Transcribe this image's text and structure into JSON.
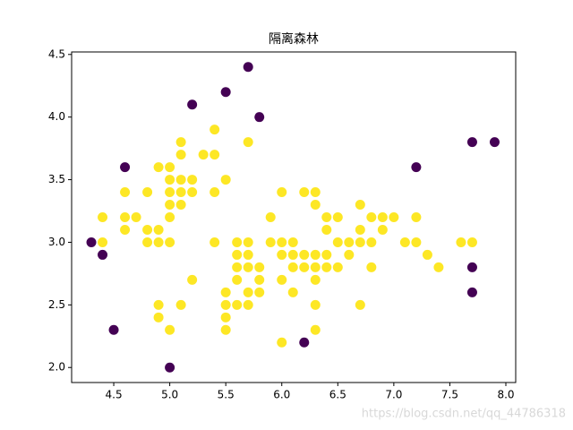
{
  "chart_data": {
    "type": "scatter",
    "title": "隔离森林",
    "xlim": [
      4.124,
      8.088
    ],
    "ylim": [
      1.88,
      4.52
    ],
    "xticks": [
      4.5,
      {
        "value": 5,
        "label": "5.0"
      },
      5.5,
      {
        "value": 6,
        "label": "6.0"
      },
      6.5,
      {
        "value": 7,
        "label": "7.0"
      },
      7.5,
      {
        "value": 8,
        "label": "8.0"
      }
    ],
    "yticks": [
      {
        "value": 2,
        "label": "2.0"
      },
      2.5,
      {
        "value": 3,
        "label": "3.0"
      },
      3.5,
      {
        "value": 4,
        "label": "4.0"
      },
      4.5
    ],
    "series": [
      {
        "color": "#fde725",
        "x": [
          4.4,
          4.4,
          4.6,
          4.6,
          4.6,
          4.7,
          4.8,
          4.8,
          4.8,
          4.9,
          4.9,
          4.9,
          4.9,
          4.9,
          5.0,
          5.0,
          5.0,
          5.0,
          5.0,
          5.0,
          5.0,
          5.1,
          5.1,
          5.1,
          5.1,
          5.1,
          5.1,
          5.2,
          5.2,
          5.2,
          5.3,
          5.4,
          5.4,
          5.4,
          5.4,
          5.5,
          5.5,
          5.5,
          5.5,
          5.5,
          5.6,
          5.6,
          5.6,
          5.6,
          5.6,
          5.7,
          5.7,
          5.7,
          5.7,
          5.7,
          5.7,
          5.8,
          5.8,
          5.8,
          5.9,
          5.9,
          6.0,
          6.0,
          6.0,
          6.0,
          6.0,
          6.1,
          6.1,
          6.1,
          6.1,
          6.2,
          6.2,
          6.2,
          6.3,
          6.3,
          6.3,
          6.3,
          6.3,
          6.3,
          6.3,
          6.4,
          6.4,
          6.4,
          6.4,
          6.5,
          6.5,
          6.5,
          6.6,
          6.6,
          6.7,
          6.7,
          6.7,
          6.7,
          6.8,
          6.8,
          6.8,
          6.9,
          6.9,
          7.0,
          7.1,
          7.2,
          7.2,
          7.3,
          7.4,
          7.6,
          7.7
        ],
        "values": [
          3.2,
          3.0,
          3.4,
          3.2,
          3.1,
          3.2,
          3.4,
          3.1,
          3.0,
          3.6,
          3.1,
          3.0,
          2.5,
          2.4,
          3.6,
          3.5,
          3.4,
          3.3,
          3.2,
          3.0,
          2.3,
          3.8,
          3.7,
          3.5,
          3.4,
          3.3,
          2.5,
          3.5,
          3.4,
          2.7,
          3.7,
          3.9,
          3.7,
          3.4,
          3.0,
          3.5,
          2.6,
          2.5,
          2.4,
          2.3,
          3.0,
          2.9,
          2.8,
          2.7,
          2.5,
          3.8,
          3.0,
          2.9,
          2.8,
          2.6,
          2.5,
          2.8,
          2.7,
          2.6,
          3.2,
          3.0,
          3.4,
          3.0,
          2.9,
          2.7,
          2.2,
          3.0,
          2.9,
          2.8,
          2.6,
          3.4,
          2.9,
          2.8,
          3.4,
          3.3,
          2.9,
          2.8,
          2.7,
          2.5,
          2.3,
          3.2,
          3.1,
          2.9,
          2.8,
          3.2,
          3.0,
          2.8,
          3.0,
          2.9,
          3.3,
          3.1,
          3.0,
          2.5,
          3.2,
          3.0,
          2.8,
          3.2,
          3.1,
          3.2,
          3.0,
          3.2,
          3.0,
          2.9,
          2.8,
          3.0,
          3.0
        ]
      },
      {
        "color": "#440154",
        "x": [
          4.3,
          4.4,
          4.5,
          4.6,
          5.0,
          5.2,
          5.5,
          5.7,
          5.8,
          6.2,
          7.2,
          7.7,
          7.9,
          7.7,
          7.7
        ],
        "values": [
          3.0,
          2.9,
          2.3,
          3.6,
          2.0,
          4.1,
          4.2,
          4.4,
          4.0,
          2.2,
          3.6,
          3.8,
          3.8,
          2.8,
          2.6
        ]
      }
    ]
  },
  "watermark": "https://blog.csdn.net/qq_44786318"
}
